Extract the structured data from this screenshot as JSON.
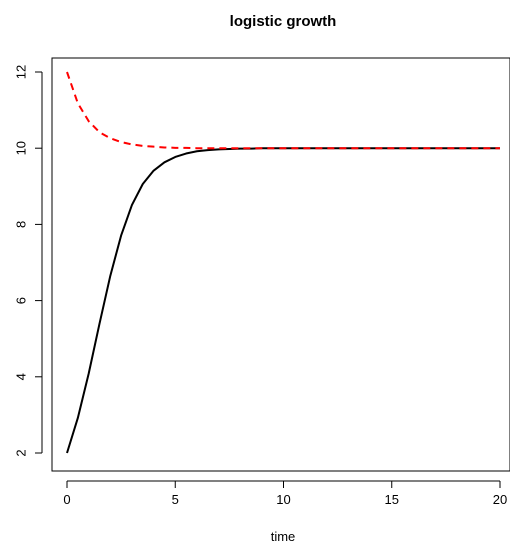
{
  "chart_data": {
    "type": "line",
    "title": "logistic growth",
    "xlabel": "time",
    "ylabel": "",
    "xlim": [
      0,
      20
    ],
    "ylim": [
      2,
      12
    ],
    "x_ticks": [
      "0",
      "5",
      "10",
      "15",
      "20"
    ],
    "y_ticks": [
      "2",
      "4",
      "6",
      "8",
      "10",
      "12"
    ],
    "grid": false,
    "legend": "none",
    "series": [
      {
        "line_style": "solid",
        "color": "#000000",
        "x": [
          0,
          0.5,
          1,
          1.5,
          2,
          2.5,
          3,
          3.5,
          4,
          4.5,
          5,
          5.5,
          6,
          6.5,
          7,
          7.5,
          8,
          8.5,
          9,
          9.5,
          10,
          12,
          14,
          16,
          18,
          20
        ],
        "values": [
          2.0,
          2.92,
          4.08,
          5.39,
          6.65,
          7.71,
          8.51,
          9.06,
          9.41,
          9.63,
          9.77,
          9.86,
          9.92,
          9.95,
          9.97,
          9.98,
          9.99,
          9.99,
          10.0,
          10.0,
          10.0,
          10.0,
          10.0,
          10.0,
          10.0,
          10.0
        ]
      },
      {
        "line_style": "dashed",
        "color": "#ff0000",
        "x": [
          0,
          0.5,
          1,
          1.5,
          2,
          2.5,
          3,
          3.5,
          4,
          4.5,
          5,
          5.5,
          6,
          7,
          8,
          9,
          10,
          12,
          14,
          16,
          18,
          20
        ],
        "values": [
          12.0,
          11.18,
          10.71,
          10.42,
          10.26,
          10.16,
          10.1,
          10.06,
          10.04,
          10.02,
          10.01,
          10.01,
          10.0,
          10.0,
          10.0,
          10.0,
          10.0,
          10.0,
          10.0,
          10.0,
          10.0,
          10.0
        ]
      }
    ]
  }
}
